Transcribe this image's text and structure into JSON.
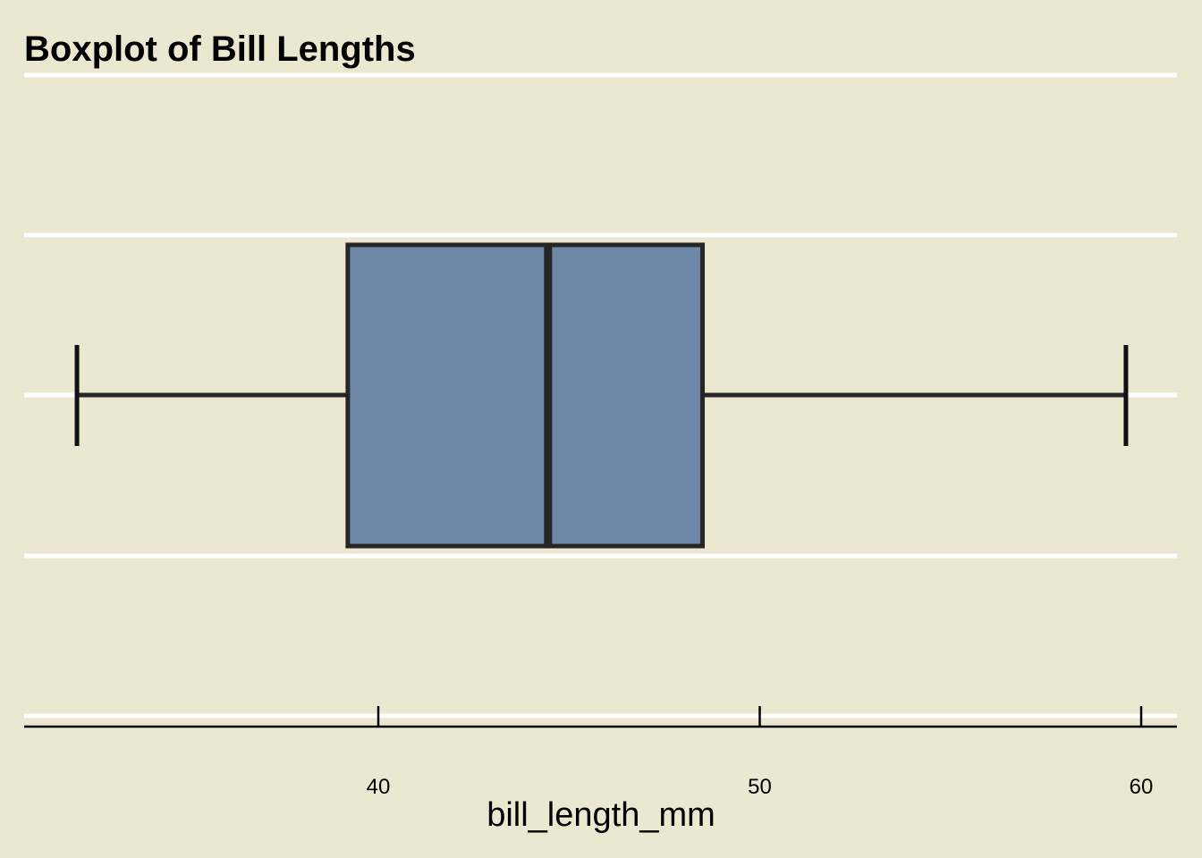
{
  "chart_data": {
    "type": "boxplot",
    "title": "Boxplot of Bill Lengths",
    "xlabel": "bill_length_mm",
    "ylabel": "",
    "xlim": [
      30.7,
      61.0
    ],
    "xticks": [
      40,
      50,
      60
    ],
    "xtick_labels": [
      "40",
      "50",
      "60"
    ],
    "grid": true,
    "box": {
      "whisker_low": 32.1,
      "q1": 39.2,
      "median": 44.45,
      "q3": 48.5,
      "whisker_high": 59.6
    },
    "colors": {
      "background": "#ebe7d1",
      "box_fill": "#6e88a7",
      "box_edge": "#262626",
      "gridline": "#ffffff"
    }
  }
}
